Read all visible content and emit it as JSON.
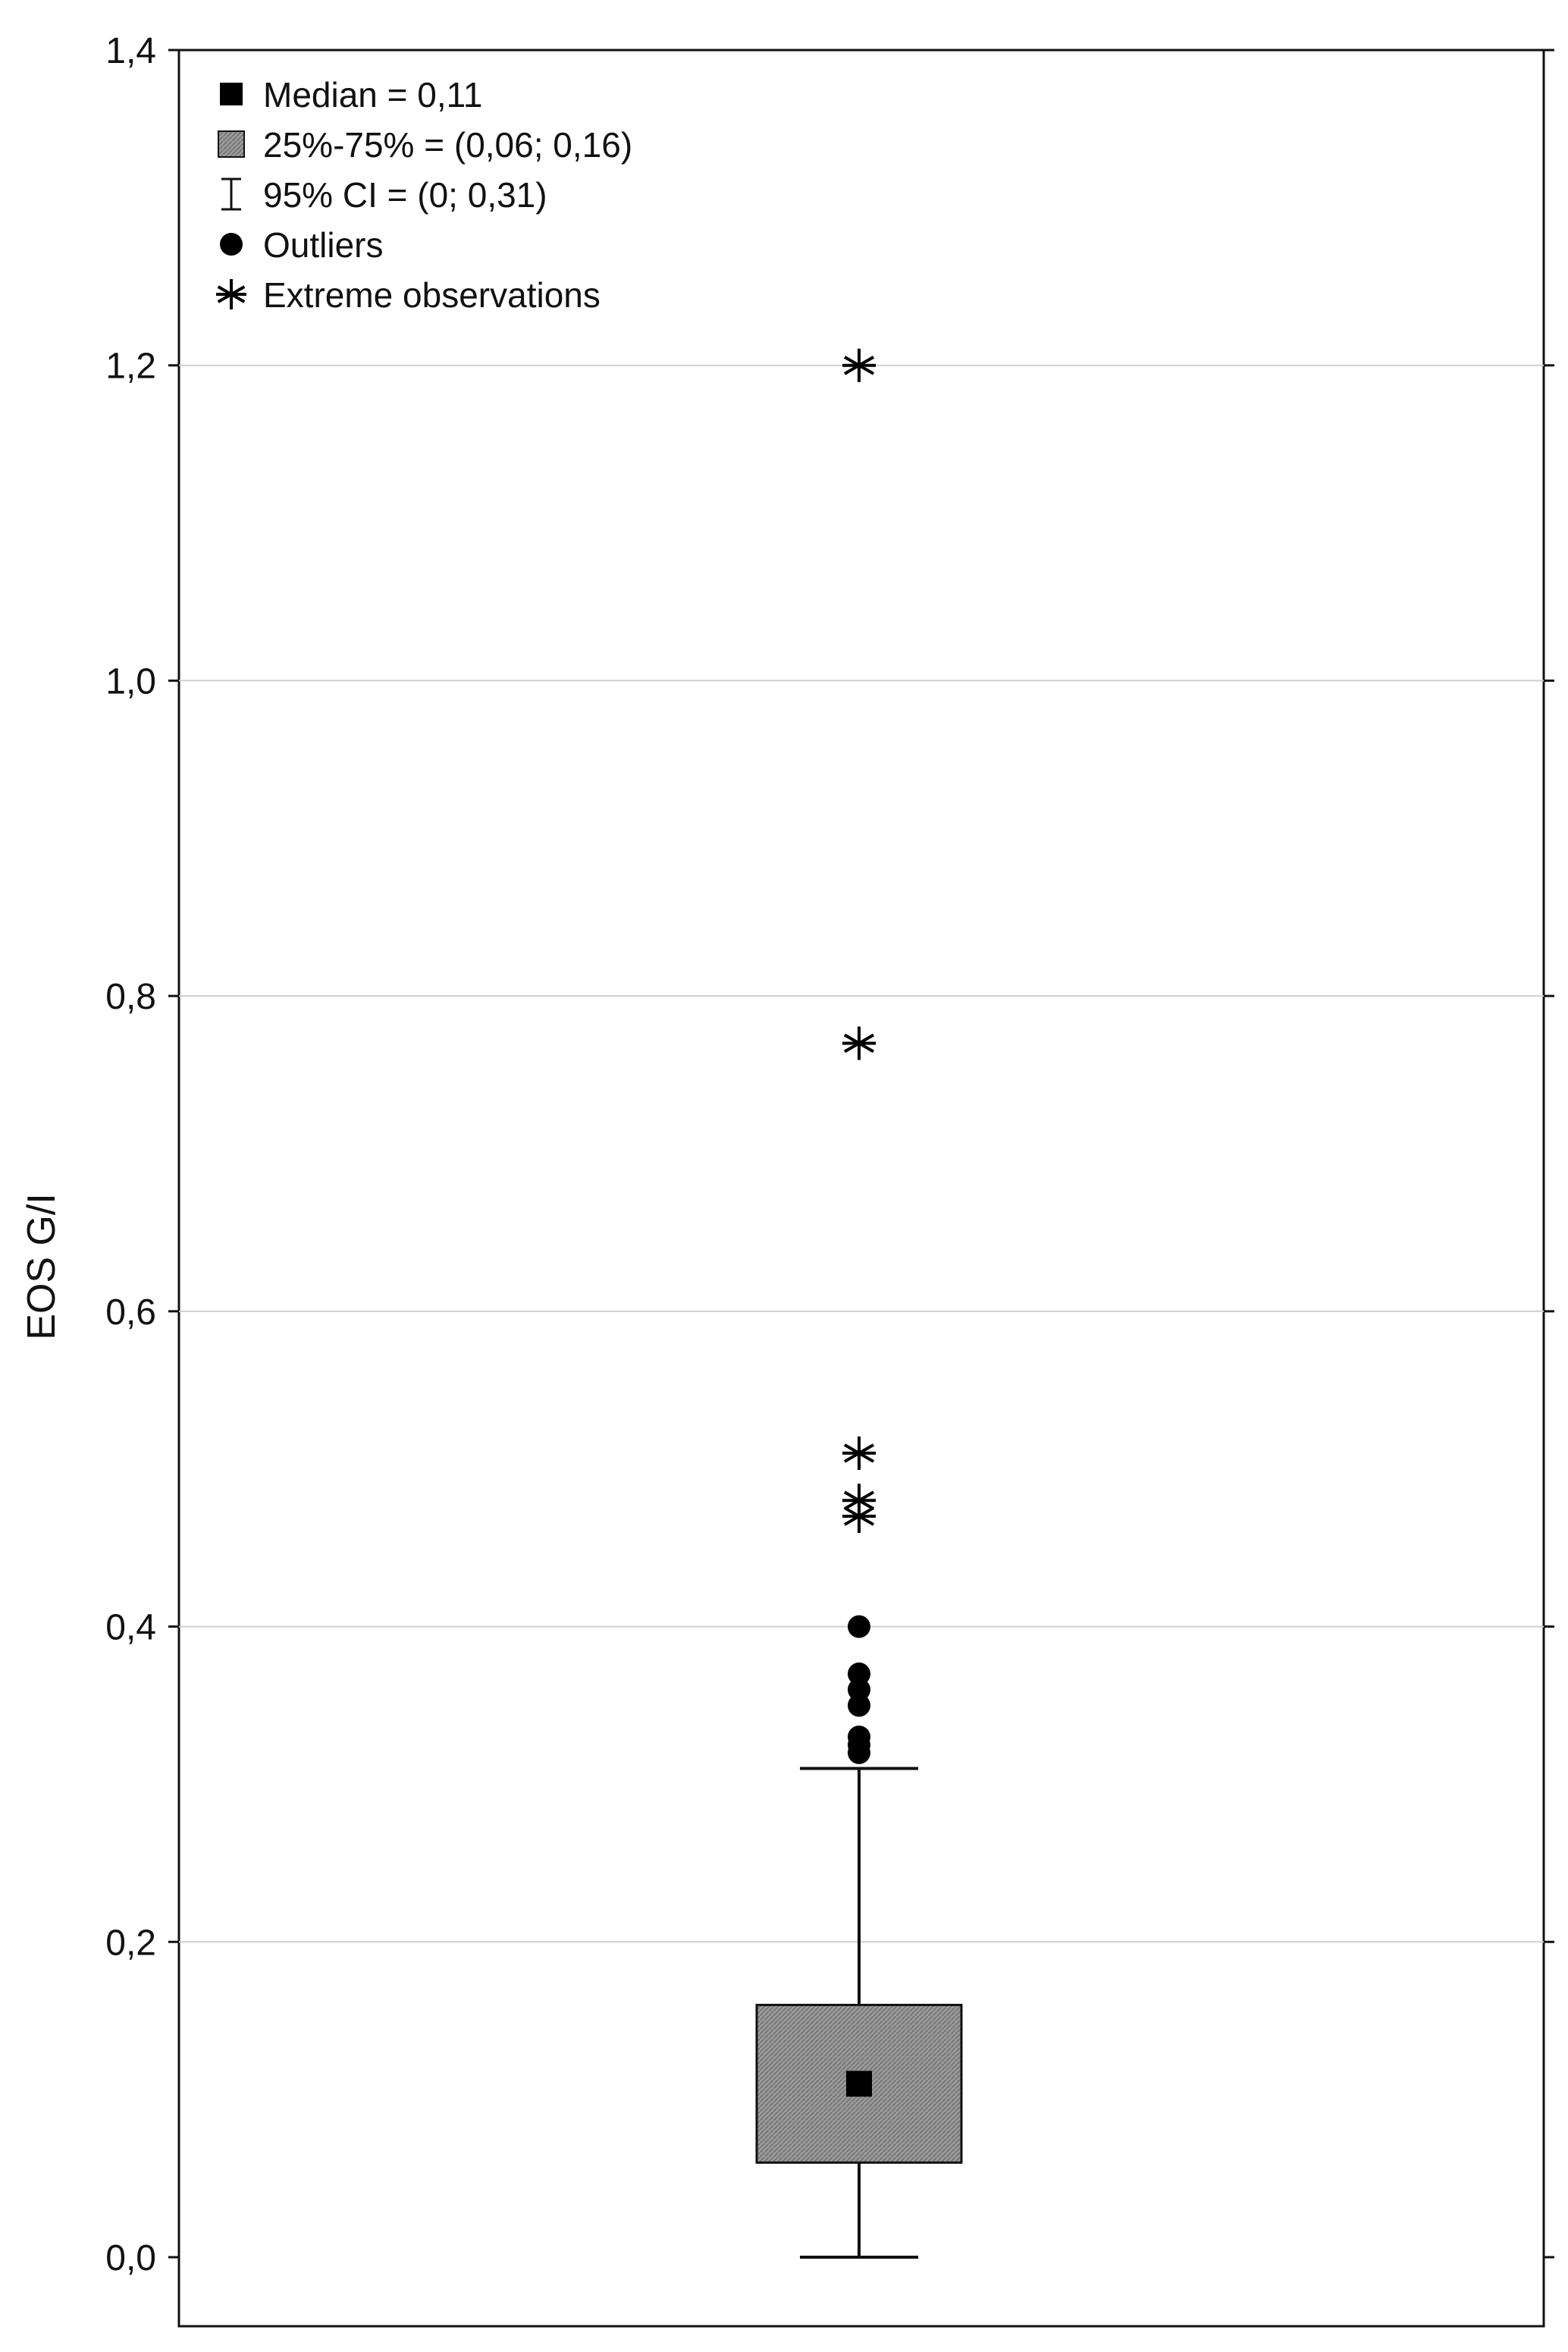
{
  "chart_data": {
    "type": "box",
    "title": "",
    "xlabel": "",
    "ylabel": "EOS G/I",
    "ylim": [
      0,
      1.4
    ],
    "yticks": [
      {
        "value": 0.0,
        "label": "0,0"
      },
      {
        "value": 0.2,
        "label": "0,2"
      },
      {
        "value": 0.4,
        "label": "0,4"
      },
      {
        "value": 0.6,
        "label": "0,6"
      },
      {
        "value": 0.8,
        "label": "0,8"
      },
      {
        "value": 1.0,
        "label": "1,0"
      },
      {
        "value": 1.2,
        "label": "1,2"
      },
      {
        "value": 1.4,
        "label": "1,4"
      }
    ],
    "grid": true,
    "legend_position": "top-left",
    "box": {
      "median": 0.11,
      "q1": 0.06,
      "q3": 0.16,
      "whisker_low": 0,
      "whisker_high": 0.31
    },
    "outliers": [
      0.32,
      0.325,
      0.33,
      0.35,
      0.36,
      0.37,
      0.4
    ],
    "extremes": [
      0.47,
      0.48,
      0.51,
      0.77,
      1.2
    ],
    "legend": [
      {
        "marker": "square",
        "label": "Median = 0,11"
      },
      {
        "marker": "hatched-box",
        "label": "25%-75% = (0,06; 0,16)"
      },
      {
        "marker": "whisker",
        "label": "95% CI = (0; 0,31)"
      },
      {
        "marker": "dot",
        "label": "Outliers"
      },
      {
        "marker": "asterisk",
        "label": "Extreme observations"
      }
    ],
    "colors": {
      "frame": "#111111",
      "grid": "#d0d0d0",
      "box_fill": "#9a9a9a",
      "marker": "#000000"
    }
  }
}
